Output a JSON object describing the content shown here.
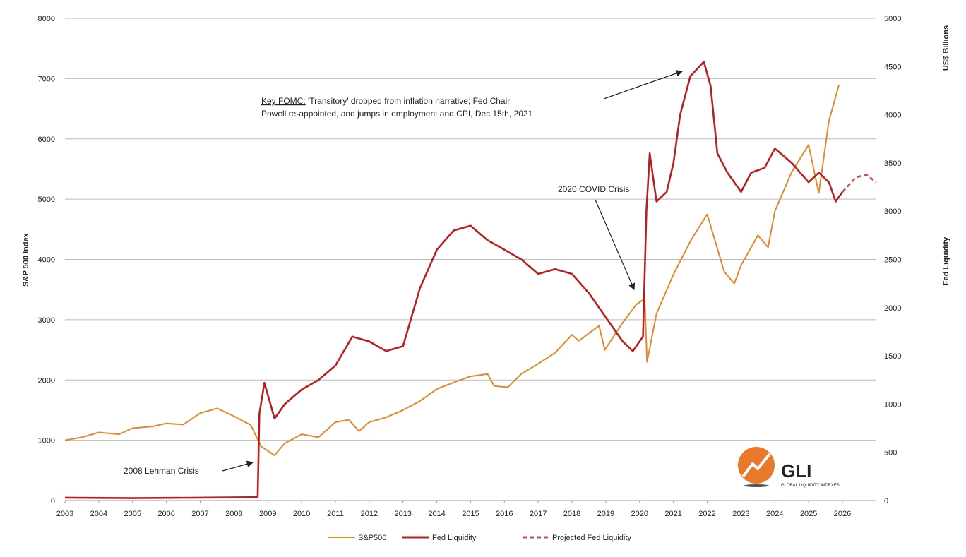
{
  "chart_data": {
    "type": "line",
    "title": "",
    "xlabel": "",
    "ylabel": "S&P 500 Index",
    "y2label": "Fed Liquidity",
    "y2unit": "US$ Billions",
    "xlim": [
      2003,
      2027
    ],
    "ylim": [
      0,
      8000
    ],
    "y2lim": [
      0,
      5000
    ],
    "grid": true,
    "legend_position": "bottom-center",
    "x_ticks": [
      "2003",
      "2004",
      "2005",
      "2006",
      "2007",
      "2008",
      "2009",
      "2010",
      "2011",
      "2012",
      "2013",
      "2014",
      "2015",
      "2016",
      "2017",
      "2018",
      "2019",
      "2020",
      "2021",
      "2022",
      "2023",
      "2024",
      "2025",
      "2026"
    ],
    "y_ticks": [
      "0",
      "1000",
      "2000",
      "3000",
      "4000",
      "5000",
      "6000",
      "7000",
      "8000"
    ],
    "y2_ticks": [
      "0",
      "500",
      "1000",
      "1500",
      "2000",
      "2500",
      "3000",
      "3500",
      "4000",
      "4500",
      "5000"
    ],
    "series": [
      {
        "name": "S&P500",
        "axis": "left",
        "color": "#E0892B",
        "style": "solid",
        "points": [
          [
            2003,
            1000
          ],
          [
            2003.5,
            1050
          ],
          [
            2004,
            1130
          ],
          [
            2004.6,
            1100
          ],
          [
            2005,
            1200
          ],
          [
            2005.6,
            1230
          ],
          [
            2006,
            1280
          ],
          [
            2006.5,
            1260
          ],
          [
            2007,
            1450
          ],
          [
            2007.5,
            1530
          ],
          [
            2008,
            1400
          ],
          [
            2008.5,
            1250
          ],
          [
            2008.8,
            900
          ],
          [
            2009.2,
            750
          ],
          [
            2009.5,
            950
          ],
          [
            2010,
            1100
          ],
          [
            2010.5,
            1050
          ],
          [
            2011,
            1300
          ],
          [
            2011.4,
            1340
          ],
          [
            2011.7,
            1150
          ],
          [
            2012,
            1300
          ],
          [
            2012.5,
            1380
          ],
          [
            2013,
            1500
          ],
          [
            2013.5,
            1650
          ],
          [
            2014,
            1850
          ],
          [
            2014.5,
            1960
          ],
          [
            2015,
            2060
          ],
          [
            2015.5,
            2100
          ],
          [
            2015.7,
            1900
          ],
          [
            2016.1,
            1880
          ],
          [
            2016.5,
            2100
          ],
          [
            2017,
            2270
          ],
          [
            2017.5,
            2450
          ],
          [
            2018,
            2750
          ],
          [
            2018.2,
            2650
          ],
          [
            2018.8,
            2900
          ],
          [
            2018.97,
            2500
          ],
          [
            2019.5,
            2950
          ],
          [
            2019.9,
            3250
          ],
          [
            2020.15,
            3350
          ],
          [
            2020.22,
            2300
          ],
          [
            2020.5,
            3100
          ],
          [
            2021,
            3750
          ],
          [
            2021.5,
            4300
          ],
          [
            2022,
            4750
          ],
          [
            2022.5,
            3800
          ],
          [
            2022.8,
            3600
          ],
          [
            2023,
            3900
          ],
          [
            2023.5,
            4400
          ],
          [
            2023.8,
            4200
          ],
          [
            2024,
            4800
          ],
          [
            2024.5,
            5450
          ],
          [
            2025,
            5900
          ],
          [
            2025.3,
            5100
          ],
          [
            2025.6,
            6300
          ],
          [
            2025.9,
            6900
          ]
        ]
      },
      {
        "name": "Fed Liquidity",
        "axis": "right",
        "color": "#B81F1F",
        "style": "solid",
        "points": [
          [
            2003,
            30
          ],
          [
            2005,
            25
          ],
          [
            2007,
            30
          ],
          [
            2008.7,
            35
          ],
          [
            2008.75,
            900
          ],
          [
            2008.9,
            1220
          ],
          [
            2009.2,
            850
          ],
          [
            2009.5,
            1000
          ],
          [
            2010,
            1150
          ],
          [
            2010.5,
            1250
          ],
          [
            2011,
            1400
          ],
          [
            2011.5,
            1700
          ],
          [
            2012,
            1650
          ],
          [
            2012.5,
            1550
          ],
          [
            2013,
            1600
          ],
          [
            2013.5,
            2200
          ],
          [
            2014,
            2600
          ],
          [
            2014.5,
            2800
          ],
          [
            2015,
            2850
          ],
          [
            2015.5,
            2700
          ],
          [
            2016,
            2600
          ],
          [
            2016.5,
            2500
          ],
          [
            2017,
            2350
          ],
          [
            2017.5,
            2400
          ],
          [
            2018,
            2350
          ],
          [
            2018.5,
            2150
          ],
          [
            2019,
            1900
          ],
          [
            2019.5,
            1650
          ],
          [
            2019.8,
            1550
          ],
          [
            2020.1,
            1700
          ],
          [
            2020.2,
            3000
          ],
          [
            2020.3,
            3600
          ],
          [
            2020.5,
            3100
          ],
          [
            2020.8,
            3200
          ],
          [
            2021,
            3500
          ],
          [
            2021.2,
            4000
          ],
          [
            2021.5,
            4400
          ],
          [
            2021.9,
            4550
          ],
          [
            2022.1,
            4300
          ],
          [
            2022.3,
            3600
          ],
          [
            2022.6,
            3400
          ],
          [
            2023,
            3200
          ],
          [
            2023.3,
            3400
          ],
          [
            2023.7,
            3450
          ],
          [
            2024,
            3650
          ],
          [
            2024.5,
            3500
          ],
          [
            2025,
            3300
          ],
          [
            2025.3,
            3400
          ],
          [
            2025.6,
            3300
          ],
          [
            2025.8,
            3100
          ],
          [
            2026,
            3200
          ]
        ]
      },
      {
        "name": "Projected Fed Liquidity",
        "axis": "right",
        "color": "#C0504D",
        "style": "dashed",
        "points": [
          [
            2026,
            3200
          ],
          [
            2026.4,
            3350
          ],
          [
            2026.7,
            3380
          ],
          [
            2027,
            3300
          ]
        ]
      }
    ],
    "annotations": [
      {
        "text_underlined": "Key FOMC:",
        "text": " 'Transitory' dropped from inflation narrative; Fed Chair",
        "text2": "Powell re-appointed, and jumps in employment and CPI, Dec 15th, 2021",
        "target": [
          2021.4,
          4500
        ]
      },
      {
        "text": "2020 COVID Crisis",
        "target": [
          2019.9,
          2200
        ]
      },
      {
        "text": "2008 Lehman Crisis",
        "target": [
          2008.7,
          550
        ]
      }
    ]
  },
  "logo": {
    "name": "GLI",
    "tagline": "GLOBAL LIQUIDITY INDEXES"
  }
}
